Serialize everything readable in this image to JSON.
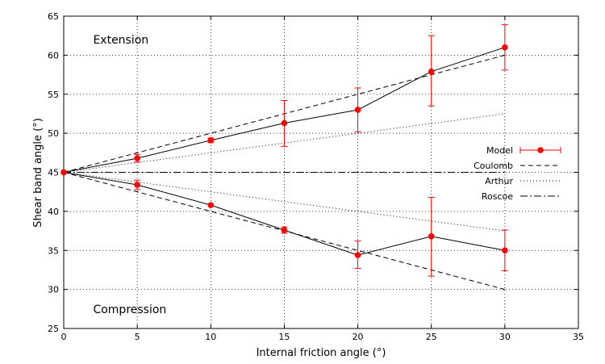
{
  "chart_data": {
    "type": "line",
    "xlabel": "Internal friction angle (°)",
    "ylabel": "Shear band angle (°)",
    "xlim": [
      0,
      35
    ],
    "ylim": [
      25,
      65
    ],
    "xticks": [
      0,
      5,
      10,
      15,
      20,
      25,
      30,
      35
    ],
    "yticks": [
      25,
      30,
      35,
      40,
      45,
      50,
      55,
      60,
      65
    ],
    "grid": true,
    "legend_position": "right",
    "annotations": [
      {
        "text": "Extension",
        "x": 2,
        "y": 62
      },
      {
        "text": "Compression",
        "x": 2,
        "y": 27.5
      }
    ],
    "series": [
      {
        "name": "Model",
        "color": "#ff0000",
        "line_color": "#000000",
        "style": "solid-markers-errorbars",
        "branches": [
          {
            "x": [
              0,
              5,
              10,
              15,
              20,
              25,
              30
            ],
            "y": [
              45,
              46.8,
              49.1,
              51.3,
              53.0,
              57.9,
              61.0
            ],
            "err_low": [
              45,
              46.3,
              48.8,
              48.3,
              50.2,
              53.5,
              58.1
            ],
            "err_high": [
              45,
              47.3,
              49.4,
              54.2,
              55.8,
              62.5,
              63.9
            ]
          },
          {
            "x": [
              0,
              5,
              10,
              15,
              20,
              25,
              30
            ],
            "y": [
              45,
              43.4,
              40.8,
              37.6,
              34.4,
              36.8,
              35.0
            ],
            "err_low": [
              45,
              42.8,
              40.8,
              37.2,
              32.7,
              31.7,
              32.4
            ],
            "err_high": [
              45,
              44.0,
              40.8,
              38.0,
              36.2,
              41.8,
              37.6
            ]
          }
        ]
      },
      {
        "name": "Coulomb",
        "color": "#000000",
        "style": "dashed",
        "branches": [
          {
            "x": [
              0,
              30
            ],
            "y": [
              45,
              60
            ]
          },
          {
            "x": [
              0,
              30
            ],
            "y": [
              45,
              30
            ]
          }
        ]
      },
      {
        "name": "Arthur",
        "color": "#000000",
        "style": "dotted",
        "branches": [
          {
            "x": [
              0,
              30
            ],
            "y": [
              45,
              52.5
            ]
          },
          {
            "x": [
              0,
              30
            ],
            "y": [
              45,
              37.5
            ]
          }
        ]
      },
      {
        "name": "Roscoe",
        "color": "#000000",
        "style": "dash-dot",
        "branches": [
          {
            "x": [
              0,
              30
            ],
            "y": [
              45,
              45
            ]
          }
        ]
      }
    ]
  }
}
